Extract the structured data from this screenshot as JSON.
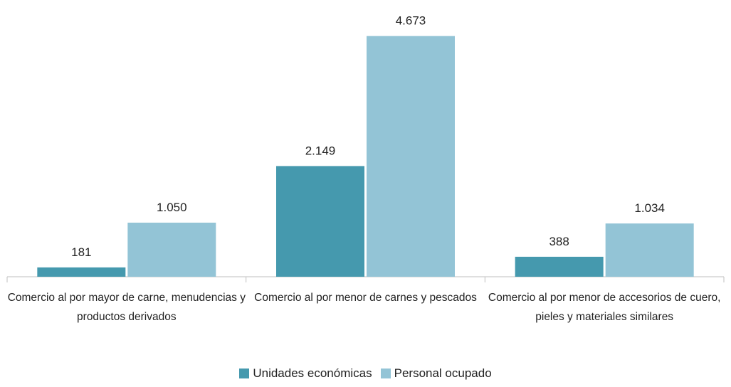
{
  "chart_data": {
    "type": "bar",
    "categories": [
      "Comercio al por mayor de carne, menudencias y productos derivados",
      "Comercio al por menor de carnes y pescados",
      "Comercio al por menor de accesorios de cuero, pieles y materiales similares"
    ],
    "series": [
      {
        "name": "Unidades económicas",
        "color": "#4599ae",
        "values": [
          181,
          2149,
          388
        ],
        "value_labels": [
          "181",
          "2.149",
          "388"
        ]
      },
      {
        "name": "Personal ocupado",
        "color": "#93c4d6",
        "values": [
          1050,
          4673,
          1034
        ],
        "value_labels": [
          "1.050",
          "4.673",
          "1.034"
        ]
      }
    ],
    "ylim": [
      0,
      5000
    ]
  }
}
